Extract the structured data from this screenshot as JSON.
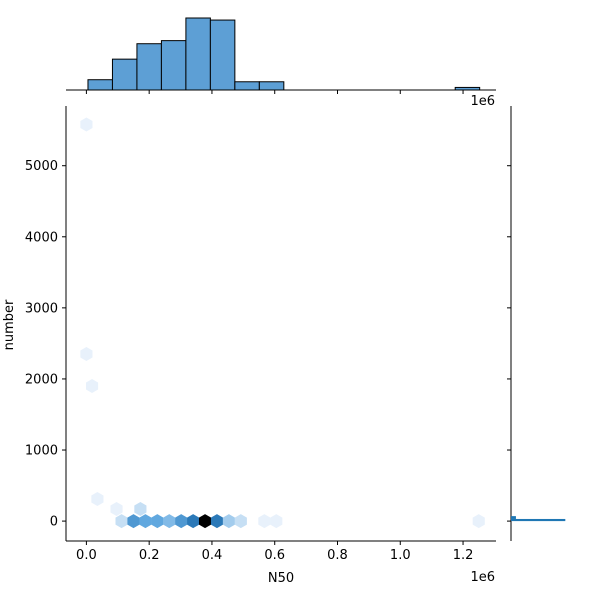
{
  "chart_data": {
    "type": "hexbin-jointplot",
    "xlabel": "N50",
    "ylabel": "number",
    "x_offset_label": "1e6",
    "top_offset_label": "1e6",
    "xlim": [
      -0.065,
      1.305
    ],
    "ylim": [
      -280,
      5840
    ],
    "x_ticks": [
      0.0,
      0.2,
      0.4,
      0.6,
      0.8,
      1.0,
      1.2
    ],
    "x_tick_labels": [
      "0.0",
      "0.2",
      "0.4",
      "0.6",
      "0.8",
      "1.0",
      "1.2"
    ],
    "y_ticks": [
      0,
      1000,
      2000,
      3000,
      4000,
      5000
    ],
    "y_tick_labels": [
      "0",
      "1000",
      "2000",
      "3000",
      "4000",
      "5000"
    ],
    "hexbins": [
      {
        "x": 0.0,
        "y": 5580,
        "count": 1
      },
      {
        "x": 0.0,
        "y": 2350,
        "count": 1
      },
      {
        "x": 0.018,
        "y": 1900,
        "count": 1
      },
      {
        "x": 0.035,
        "y": 310,
        "count": 1
      },
      {
        "x": 0.096,
        "y": 170,
        "count": 1
      },
      {
        "x": 0.172,
        "y": 170,
        "count": 2
      },
      {
        "x": 0.112,
        "y": 0,
        "count": 2
      },
      {
        "x": 0.15,
        "y": 0,
        "count": 6
      },
      {
        "x": 0.188,
        "y": 0,
        "count": 5
      },
      {
        "x": 0.226,
        "y": 0,
        "count": 5
      },
      {
        "x": 0.264,
        "y": 0,
        "count": 4
      },
      {
        "x": 0.302,
        "y": 0,
        "count": 6
      },
      {
        "x": 0.34,
        "y": 0,
        "count": 8
      },
      {
        "x": 0.378,
        "y": 0,
        "count": 12
      },
      {
        "x": 0.416,
        "y": 0,
        "count": 8
      },
      {
        "x": 0.454,
        "y": 0,
        "count": 3
      },
      {
        "x": 0.492,
        "y": 0,
        "count": 2
      },
      {
        "x": 0.567,
        "y": 0,
        "count": 1
      },
      {
        "x": 0.605,
        "y": 0,
        "count": 1
      },
      {
        "x": 1.25,
        "y": 0,
        "count": 1
      }
    ],
    "x_histogram": {
      "bin_edges": [
        0.005,
        0.083,
        0.161,
        0.239,
        0.317,
        0.395,
        0.473,
        0.551,
        0.629,
        0.707,
        0.785,
        0.863,
        0.941,
        1.019,
        1.097,
        1.175,
        1.253
      ],
      "counts": [
        1,
        3,
        4.5,
        4.8,
        7,
        6.8,
        0.8,
        0.8,
        0,
        0,
        0,
        0,
        0,
        0,
        0,
        0.25
      ]
    },
    "y_histogram": {
      "max_width": 16,
      "bars": [
        {
          "y0": 0,
          "y1": 30,
          "width": 11
        },
        {
          "y0": 30,
          "y1": 70,
          "width": 1
        }
      ]
    },
    "colors": {
      "hist_fill": "#5d9fd5",
      "hist_edge": "#000000",
      "hex_light": "#e8f1fb",
      "hex_dark": "#000000",
      "hex_mid": "#1f77b4"
    }
  }
}
